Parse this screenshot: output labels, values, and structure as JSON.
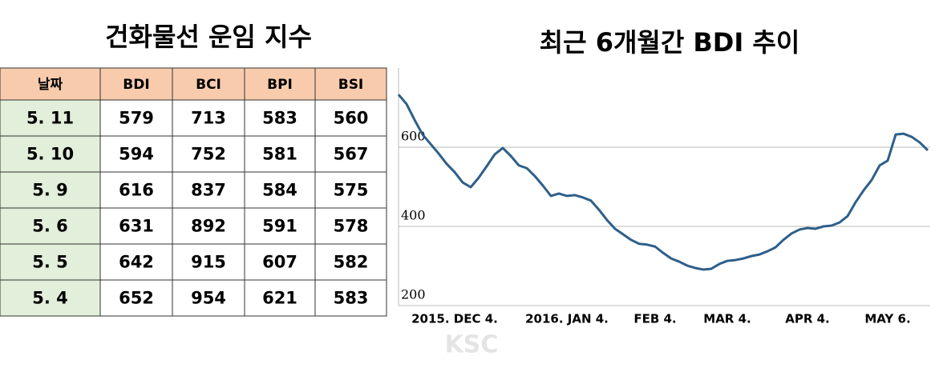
{
  "table": {
    "title": "건화물선 운임 지수",
    "header": [
      "날짜",
      "BDI",
      "BCI",
      "BPI",
      "BSI"
    ],
    "rows": [
      [
        "5. 11",
        "579",
        "713",
        "583",
        "560"
      ],
      [
        "5. 10",
        "594",
        "752",
        "581",
        "567"
      ],
      [
        "5. 9",
        "616",
        "837",
        "584",
        "575"
      ],
      [
        "5. 6",
        "631",
        "892",
        "591",
        "578"
      ],
      [
        "5. 5",
        "642",
        "915",
        "607",
        "582"
      ],
      [
        "5. 4",
        "652",
        "954",
        "621",
        "583"
      ]
    ]
  },
  "chart_data": {
    "type": "line",
    "title": "최근 6개월간 BDI 추이",
    "watermark": "KSC",
    "categories": [
      null,
      null,
      null,
      null,
      null,
      null,
      null,
      "2015. DEC 4.",
      null,
      null,
      null,
      null,
      null,
      null,
      null,
      null,
      null,
      null,
      null,
      null,
      null,
      "2016. JAN 4.",
      null,
      null,
      null,
      null,
      null,
      null,
      null,
      null,
      null,
      null,
      "FEB 4.",
      null,
      null,
      null,
      null,
      null,
      null,
      null,
      null,
      "MAR 4.",
      null,
      null,
      null,
      null,
      null,
      null,
      null,
      null,
      null,
      "APR 4.",
      null,
      null,
      null,
      null,
      null,
      null,
      null,
      null,
      null,
      "MAY 6.",
      null,
      null,
      null,
      null,
      null
    ],
    "values": [
      733,
      709,
      669,
      632,
      608,
      584,
      558,
      537,
      511,
      499,
      523,
      552,
      582,
      598,
      578,
      554,
      547,
      527,
      503,
      477,
      483,
      477,
      479,
      473,
      465,
      442,
      416,
      394,
      380,
      366,
      356,
      354,
      349,
      333,
      319,
      311,
      301,
      295,
      291,
      293,
      305,
      313,
      315,
      319,
      325,
      329,
      337,
      347,
      366,
      382,
      392,
      396,
      394,
      400,
      402,
      410,
      426,
      461,
      491,
      517,
      554,
      566,
      632,
      634,
      626,
      612,
      592
    ],
    "color": "#2e5f8a",
    "ylim": [
      200,
      800
    ],
    "yticks": [
      200,
      400,
      600
    ],
    "grid": true
  }
}
